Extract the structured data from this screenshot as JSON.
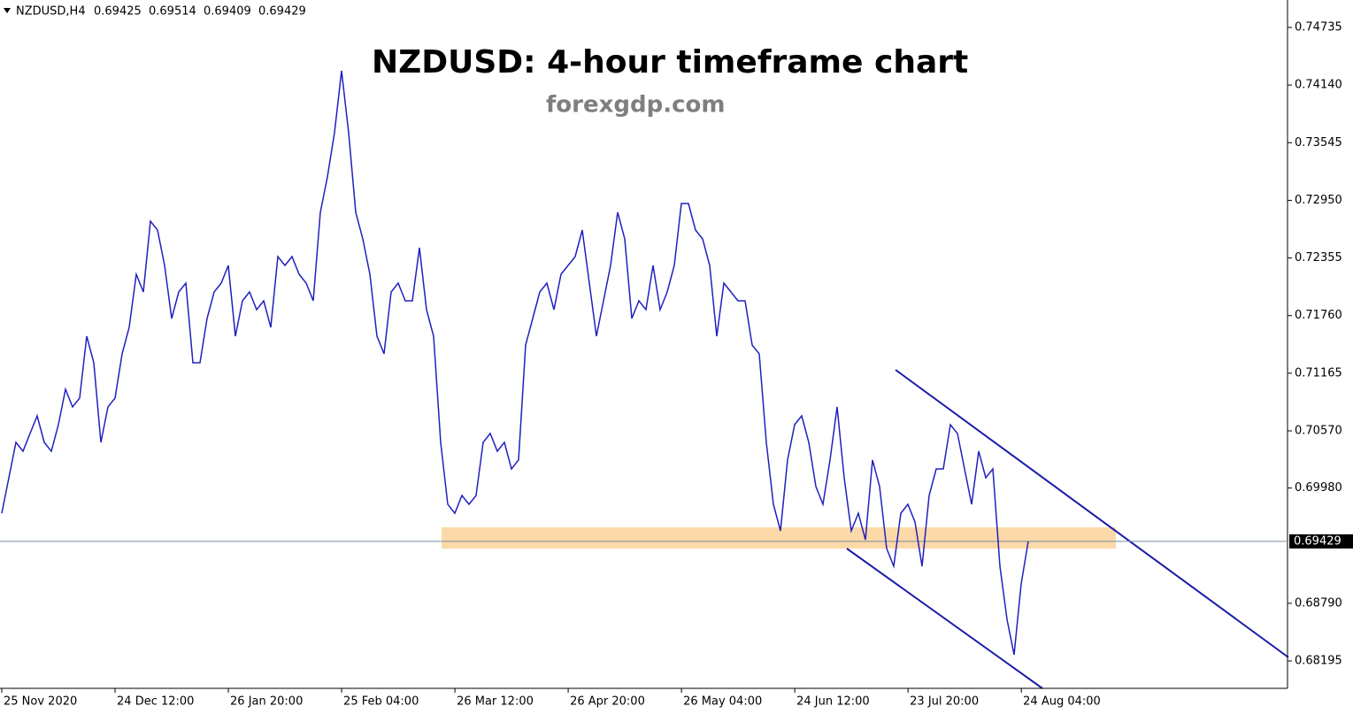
{
  "chart_data": {
    "type": "line",
    "title": "NZDUSD: 4-hour timeframe chart",
    "subtitle": "forexgdp.com",
    "symbol": "NZDUSD,H4",
    "ohlc": [
      0.69425,
      0.69514,
      0.69409,
      0.69429
    ],
    "current_price": 0.69429,
    "color": "#2020c0",
    "values": [
      0.6972,
      0.70086,
      0.70451,
      0.7036,
      0.70543,
      0.70725,
      0.70451,
      0.7036,
      0.70634,
      0.70999,
      0.70817,
      0.70908,
      0.71547,
      0.71273,
      0.70451,
      0.70817,
      0.70908,
      0.71365,
      0.71639,
      0.72187,
      0.72004,
      0.72735,
      0.72643,
      0.72278,
      0.7173,
      0.72004,
      0.72095,
      0.71273,
      0.71273,
      0.7173,
      0.72004,
      0.72095,
      0.72278,
      0.71547,
      0.71913,
      0.72004,
      0.71821,
      0.71913,
      0.71639,
      0.72369,
      0.72278,
      0.72369,
      0.72187,
      0.72095,
      0.71913,
      0.72826,
      0.73191,
      0.73648,
      0.74287,
      0.73648,
      0.72826,
      0.72552,
      0.72187,
      0.71547,
      0.71365,
      0.72004,
      0.72095,
      0.71913,
      0.71913,
      0.72461,
      0.71821,
      0.71547,
      0.70451,
      0.69812,
      0.6972,
      0.69903,
      0.69812,
      0.69903,
      0.70451,
      0.70543,
      0.7036,
      0.70451,
      0.70177,
      0.70269,
      0.71456,
      0.7173,
      0.72004,
      0.72095,
      0.71821,
      0.72187,
      0.72278,
      0.72369,
      0.72643,
      0.72095,
      0.71547,
      0.71913,
      0.72278,
      0.72826,
      0.72552,
      0.7173,
      0.71913,
      0.71821,
      0.72278,
      0.71821,
      0.72004,
      0.72278,
      0.72917,
      0.72917,
      0.72643,
      0.72552,
      0.72278,
      0.71547,
      0.72095,
      0.72004,
      0.71913,
      0.71913,
      0.71456,
      0.71365,
      0.70451,
      0.69812,
      0.69538,
      0.70269,
      0.70634,
      0.70725,
      0.70451,
      0.69995,
      0.69812,
      0.70269,
      0.70817,
      0.70086,
      0.69538,
      0.6972,
      0.69446,
      0.70269,
      0.69995,
      0.69355,
      0.69172,
      0.6972,
      0.69812,
      0.69629,
      0.69172,
      0.69903,
      0.70177,
      0.70177,
      0.70634,
      0.70543,
      0.70177,
      0.69812,
      0.7036,
      0.70086,
      0.70177,
      0.69172,
      0.68624,
      0.68259,
      0.6899,
      0.69429
    ],
    "xlim": [
      -0.25,
      181.6
    ],
    "xticks": [
      {
        "value": 0,
        "label": "25 Nov 2020"
      },
      {
        "value": 16,
        "label": "24 Dec 12:00"
      },
      {
        "value": 32,
        "label": "26 Jan 20:00"
      },
      {
        "value": 48,
        "label": "25 Feb 04:00"
      },
      {
        "value": 64,
        "label": "26 Mar 12:00"
      },
      {
        "value": 80,
        "label": "26 Apr 20:00"
      },
      {
        "value": 96,
        "label": "26 May 04:00"
      },
      {
        "value": 112,
        "label": "24 Jun 12:00"
      },
      {
        "value": 128,
        "label": "23 Jul 20:00"
      },
      {
        "value": 144,
        "label": "24 Aug 04:00"
      }
    ],
    "ylim": [
      0.67912,
      0.75018
    ],
    "yticks": [
      0.74735,
      {
        "value": 0.7414,
        "label": "0.74140"
      },
      0.73545,
      {
        "value": 0.7295,
        "label": "0.72950"
      },
      0.72355,
      {
        "value": 0.7176,
        "label": "0.71760"
      },
      0.71165,
      {
        "value": 0.7057,
        "label": "0.70570"
      },
      {
        "value": 0.6998,
        "label": "0.69980"
      },
      {
        "value": 0.6879,
        "label": "0.68790"
      },
      0.68195
    ]
  }
}
